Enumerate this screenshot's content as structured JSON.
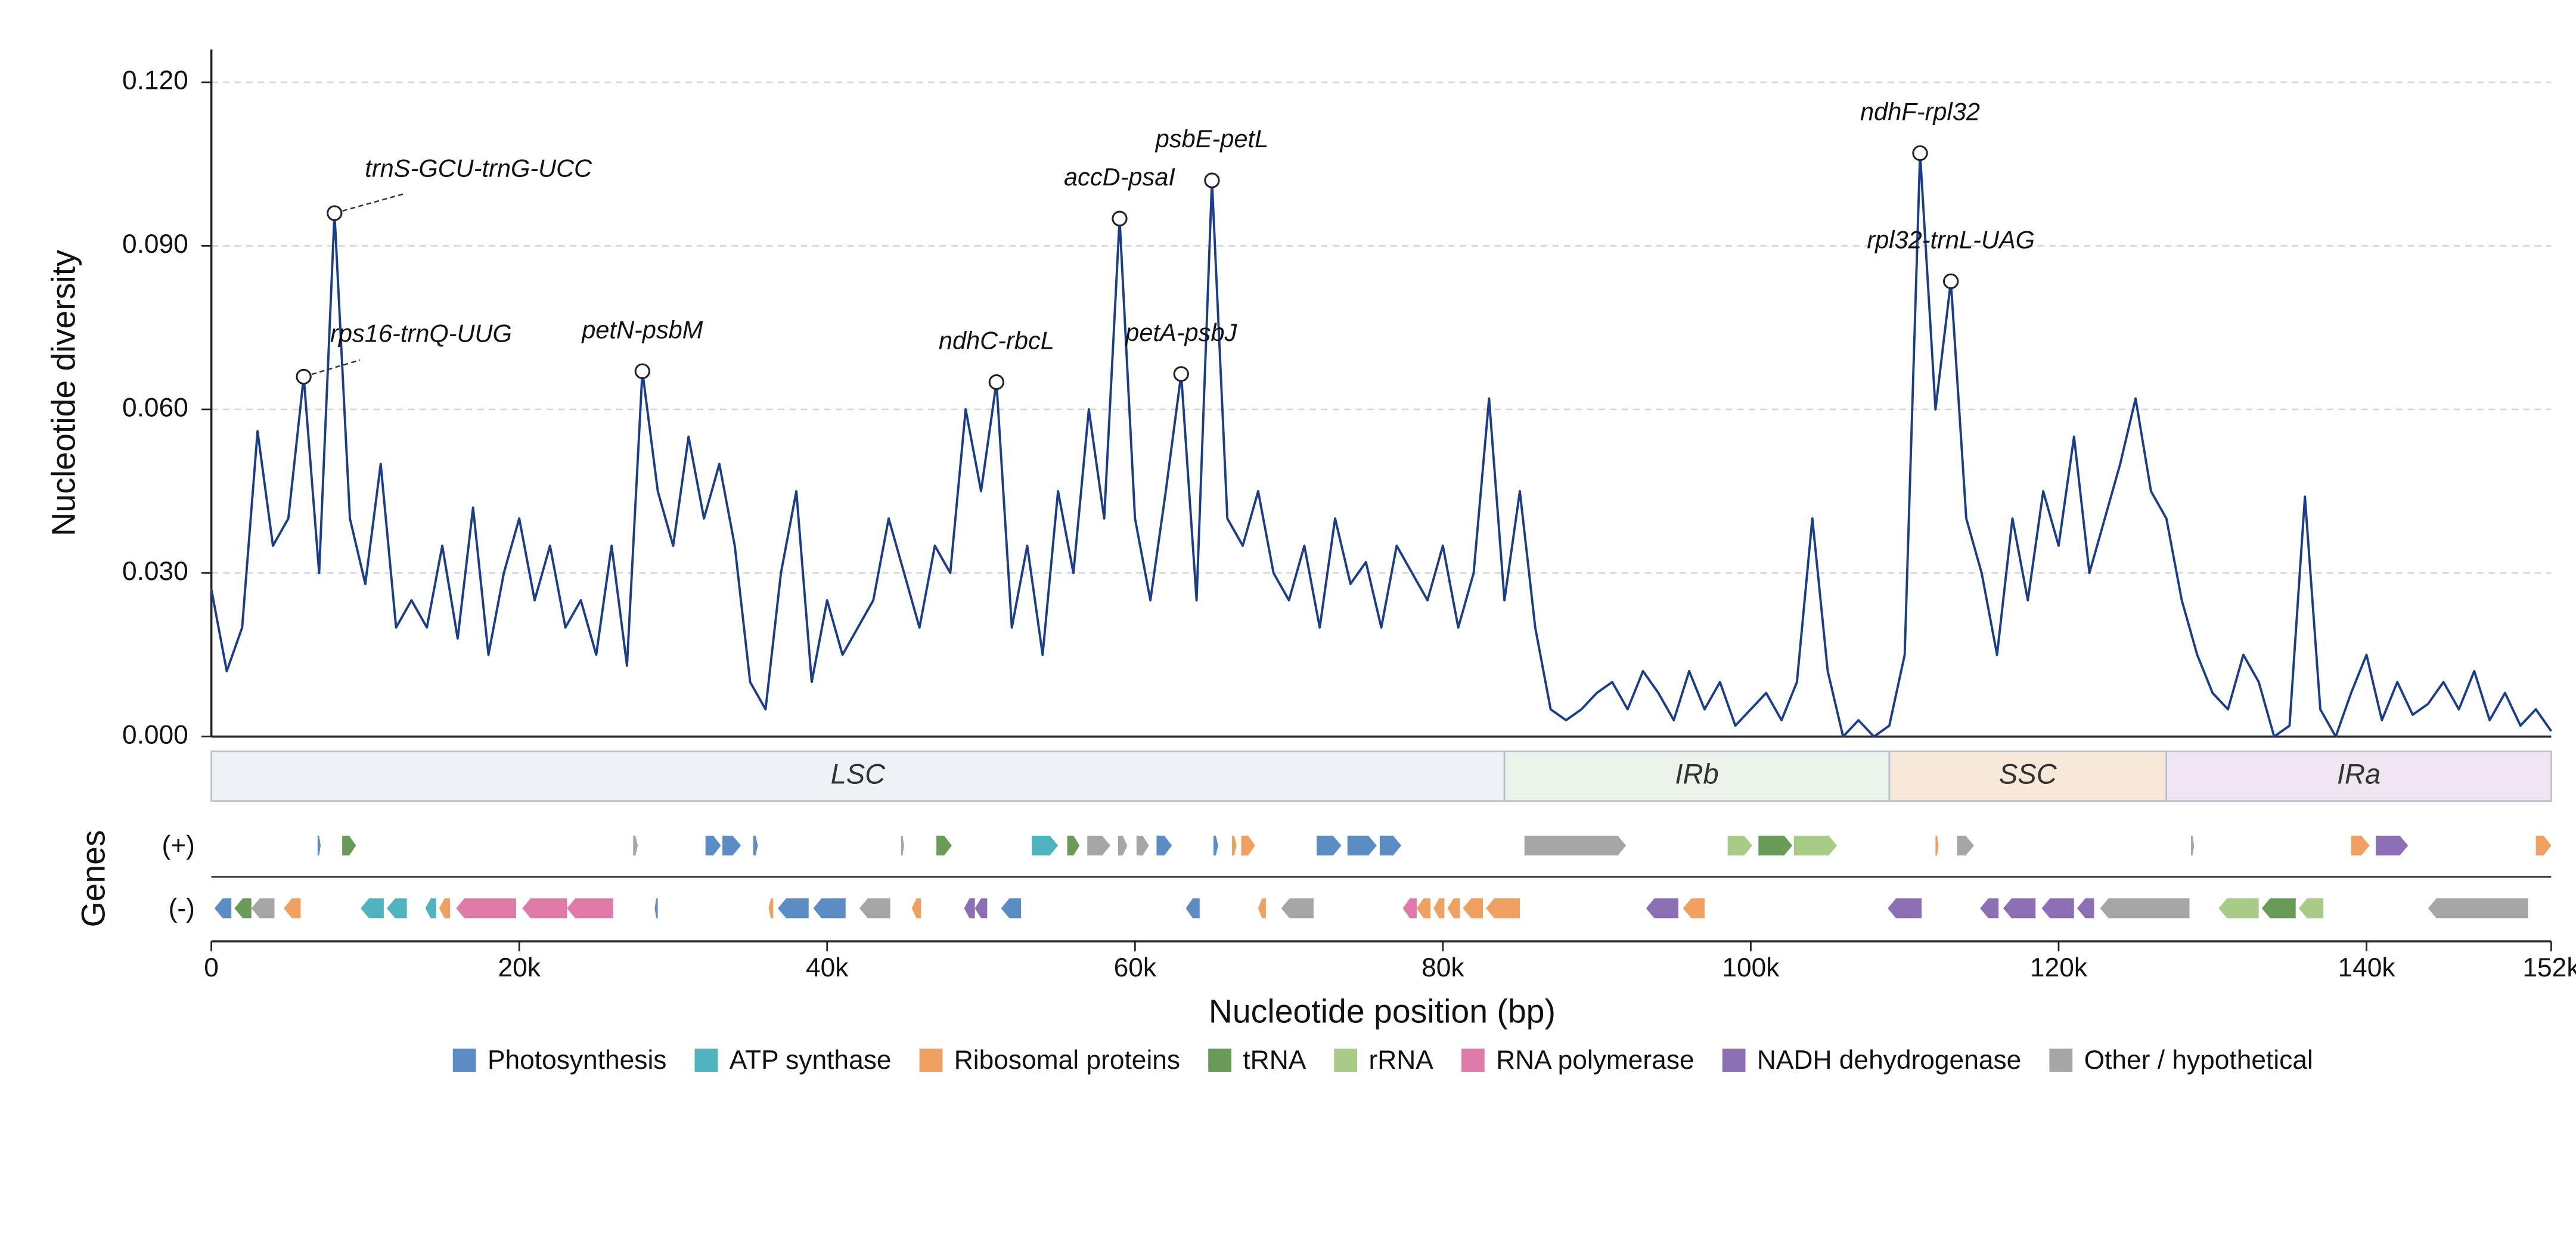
{
  "chart_data": {
    "type": "line",
    "x_label": "Nucleotide position (bp)",
    "y_label": "Nucleotide diversity",
    "x": [
      0,
      1000,
      2000,
      3000,
      4000,
      5000,
      6000,
      7000,
      8000,
      9000,
      10000,
      11000,
      12000,
      13000,
      14000,
      15000,
      16000,
      17000,
      18000,
      19000,
      20000,
      21000,
      22000,
      23000,
      24000,
      25000,
      26000,
      27000,
      28000,
      29000,
      30000,
      31000,
      32000,
      33000,
      34000,
      35000,
      36000,
      37000,
      38000,
      39000,
      40000,
      41000,
      42000,
      43000,
      44000,
      45000,
      46000,
      47000,
      48000,
      49000,
      50000,
      51000,
      52000,
      53000,
      54000,
      55000,
      56000,
      57000,
      58000,
      59000,
      60000,
      61000,
      62000,
      63000,
      64000,
      65000,
      66000,
      67000,
      68000,
      69000,
      70000,
      71000,
      72000,
      73000,
      74000,
      75000,
      76000,
      77000,
      78000,
      79000,
      80000,
      81000,
      82000,
      83000,
      84000,
      85000,
      86000,
      87000,
      88000,
      89000,
      90000,
      91000,
      92000,
      93000,
      94000,
      95000,
      96000,
      97000,
      98000,
      99000,
      100000,
      101000,
      102000,
      103000,
      104000,
      105000,
      106000,
      107000,
      108000,
      109000,
      110000,
      111000,
      112000,
      113000,
      114000,
      115000,
      116000,
      117000,
      118000,
      119000,
      120000,
      121000,
      122000,
      123000,
      124000,
      125000,
      126000,
      127000,
      128000,
      129000,
      130000,
      131000,
      132000,
      133000,
      134000,
      135000,
      136000,
      137000,
      138000,
      139000,
      140000,
      141000,
      142000,
      143000,
      144000,
      145000,
      146000,
      147000,
      148000,
      149000,
      150000,
      151000,
      152000
    ],
    "series": [
      {
        "color": "#1a3e8c",
        "values": [
          0.027,
          0.012,
          0.02,
          0.056,
          0.035,
          0.04,
          0.066,
          0.03,
          0.096,
          0.04,
          0.028,
          0.05,
          0.02,
          0.025,
          0.02,
          0.035,
          0.018,
          0.042,
          0.015,
          0.03,
          0.04,
          0.025,
          0.035,
          0.02,
          0.025,
          0.015,
          0.035,
          0.013,
          0.067,
          0.045,
          0.035,
          0.055,
          0.04,
          0.05,
          0.035,
          0.01,
          0.005,
          0.03,
          0.045,
          0.01,
          0.025,
          0.015,
          0.02,
          0.025,
          0.04,
          0.03,
          0.02,
          0.035,
          0.03,
          0.06,
          0.045,
          0.065,
          0.02,
          0.035,
          0.015,
          0.045,
          0.03,
          0.06,
          0.04,
          0.095,
          0.04,
          0.025,
          0.045,
          0.0665,
          0.025,
          0.102,
          0.04,
          0.035,
          0.045,
          0.03,
          0.025,
          0.035,
          0.02,
          0.04,
          0.028,
          0.032,
          0.02,
          0.035,
          0.03,
          0.025,
          0.035,
          0.02,
          0.03,
          0.062,
          0.025,
          0.045,
          0.02,
          0.005,
          0.003,
          0.005,
          0.008,
          0.01,
          0.005,
          0.012,
          0.008,
          0.003,
          0.012,
          0.005,
          0.01,
          0.002,
          0.005,
          0.008,
          0.003,
          0.01,
          0.04,
          0.012,
          0.0,
          0.003,
          0.0,
          0.002,
          0.015,
          0.107,
          0.06,
          0.0835,
          0.04,
          0.03,
          0.015,
          0.04,
          0.025,
          0.045,
          0.035,
          0.055,
          0.03,
          0.04,
          0.05,
          0.062,
          0.045,
          0.04,
          0.025,
          0.015,
          0.008,
          0.005,
          0.015,
          0.01,
          0.0,
          0.002,
          0.044,
          0.005,
          0.0,
          0.008,
          0.015,
          0.003,
          0.01,
          0.004,
          0.006,
          0.01,
          0.005,
          0.012,
          0.003,
          0.008,
          0.002,
          0.005,
          0.001
        ]
      }
    ],
    "xlim": [
      0,
      152000
    ],
    "xticks": [
      {
        "value": 0,
        "label": "0"
      },
      {
        "value": 20000,
        "label": "20k"
      },
      {
        "value": 40000,
        "label": "40k"
      },
      {
        "value": 60000,
        "label": "60k"
      },
      {
        "value": 80000,
        "label": "80k"
      },
      {
        "value": 100000,
        "label": "100k"
      },
      {
        "value": 120000,
        "label": "120k"
      },
      {
        "value": 140000,
        "label": "140k"
      },
      {
        "value": 152000,
        "label": "152k"
      }
    ],
    "ylim": [
      0,
      0.126
    ],
    "yticks": [
      {
        "value": 0,
        "label": "0.000"
      },
      {
        "value": 0.03,
        "label": "0.030"
      },
      {
        "value": 0.06,
        "label": "0.060"
      },
      {
        "value": 0.09,
        "label": "0.090"
      },
      {
        "value": 0.12,
        "label": "0.120"
      }
    ],
    "grid": true,
    "annotations": [
      {
        "text": "rps16-trnQ-UUG",
        "x": 6000
      },
      {
        "text": "trnS-GCU-trnG-UCC",
        "x": 8000
      },
      {
        "text": "petN-psbM",
        "x": 28000
      },
      {
        "text": "ndhC-rbcL",
        "x": 51000
      },
      {
        "text": "accD-psaI",
        "x": 59000
      },
      {
        "text": "petA-psbJ",
        "x": 63000
      },
      {
        "text": "psbE-petL",
        "x": 65000
      },
      {
        "text": "ndhF-rpl32",
        "x": 111000
      },
      {
        "text": "rpl32-trnL-UAG",
        "x": 113000
      }
    ],
    "regions": [
      {
        "name": "LSC",
        "start": 0,
        "end": 84000,
        "color": "#eef2f6"
      },
      {
        "name": "IRb",
        "start": 84000,
        "end": 109000,
        "color": "#ecf3ea"
      },
      {
        "name": "SSC",
        "start": 109000,
        "end": 127000,
        "color": "#f8e8da"
      },
      {
        "name": "IRa",
        "start": 127000,
        "end": 152000,
        "color": "#f0e6f1"
      }
    ],
    "gene_track": {
      "title": "Genes",
      "strand_labels": [
        "(+)",
        "(-)"
      ],
      "genes": [
        {
          "start": 6900,
          "end": 7100,
          "strand": "+",
          "category": "Photosynthesis"
        },
        {
          "start": 8500,
          "end": 9400,
          "strand": "+",
          "category": "tRNA"
        },
        {
          "start": 27400,
          "end": 27700,
          "strand": "+",
          "category": "Other / hypothetical"
        },
        {
          "start": 32100,
          "end": 33100,
          "strand": "+",
          "category": "Photosynthesis"
        },
        {
          "start": 33200,
          "end": 34400,
          "strand": "+",
          "category": "Photosynthesis"
        },
        {
          "start": 35200,
          "end": 35500,
          "strand": "+",
          "category": "Photosynthesis"
        },
        {
          "start": 44800,
          "end": 45000,
          "strand": "+",
          "category": "Other / hypothetical"
        },
        {
          "start": 47100,
          "end": 48100,
          "strand": "+",
          "category": "tRNA"
        },
        {
          "start": 53300,
          "end": 55000,
          "strand": "+",
          "category": "ATP synthase"
        },
        {
          "start": 55600,
          "end": 56400,
          "strand": "+",
          "category": "tRNA"
        },
        {
          "start": 56900,
          "end": 58400,
          "strand": "+",
          "category": "Other / hypothetical"
        },
        {
          "start": 58900,
          "end": 59500,
          "strand": "+",
          "category": "Other / hypothetical"
        },
        {
          "start": 60100,
          "end": 60900,
          "strand": "+",
          "category": "Other / hypothetical"
        },
        {
          "start": 61400,
          "end": 62400,
          "strand": "+",
          "category": "Photosynthesis"
        },
        {
          "start": 65100,
          "end": 65400,
          "strand": "+",
          "category": "Photosynthesis"
        },
        {
          "start": 66300,
          "end": 66600,
          "strand": "+",
          "category": "Ribosomal proteins"
        },
        {
          "start": 66900,
          "end": 67800,
          "strand": "+",
          "category": "Ribosomal proteins"
        },
        {
          "start": 71800,
          "end": 73400,
          "strand": "+",
          "category": "Photosynthesis"
        },
        {
          "start": 73800,
          "end": 75700,
          "strand": "+",
          "category": "Photosynthesis"
        },
        {
          "start": 75900,
          "end": 77300,
          "strand": "+",
          "category": "Photosynthesis"
        },
        {
          "start": 85300,
          "end": 91900,
          "strand": "+",
          "category": "Other / hypothetical"
        },
        {
          "start": 98500,
          "end": 100100,
          "strand": "+",
          "category": "rRNA"
        },
        {
          "start": 100500,
          "end": 102700,
          "strand": "+",
          "category": "tRNA"
        },
        {
          "start": 102800,
          "end": 105600,
          "strand": "+",
          "category": "rRNA"
        },
        {
          "start": 112000,
          "end": 112200,
          "strand": "+",
          "category": "Ribosomal proteins"
        },
        {
          "start": 113400,
          "end": 114500,
          "strand": "+",
          "category": "Other / hypothetical"
        },
        {
          "start": 128600,
          "end": 128800,
          "strand": "+",
          "category": "Other / hypothetical"
        },
        {
          "start": 139000,
          "end": 140200,
          "strand": "+",
          "category": "Ribosomal proteins"
        },
        {
          "start": 140600,
          "end": 142700,
          "strand": "+",
          "category": "NADH dehydrogenase"
        },
        {
          "start": 151000,
          "end": 152000,
          "strand": "+",
          "category": "Ribosomal proteins"
        },
        {
          "start": 200,
          "end": 1300,
          "strand": "-",
          "category": "Photosynthesis"
        },
        {
          "start": 1500,
          "end": 2600,
          "strand": "-",
          "category": "tRNA"
        },
        {
          "start": 2600,
          "end": 4100,
          "strand": "-",
          "category": "Other / hypothetical"
        },
        {
          "start": 4700,
          "end": 5800,
          "strand": "-",
          "category": "Ribosomal proteins"
        },
        {
          "start": 9700,
          "end": 11200,
          "strand": "-",
          "category": "ATP synthase"
        },
        {
          "start": 11400,
          "end": 12700,
          "strand": "-",
          "category": "ATP synthase"
        },
        {
          "start": 13900,
          "end": 14600,
          "strand": "-",
          "category": "ATP synthase"
        },
        {
          "start": 14800,
          "end": 15500,
          "strand": "-",
          "category": "Ribosomal proteins"
        },
        {
          "start": 15900,
          "end": 19800,
          "strand": "-",
          "category": "RNA polymerase"
        },
        {
          "start": 20200,
          "end": 23100,
          "strand": "-",
          "category": "RNA polymerase"
        },
        {
          "start": 23100,
          "end": 26100,
          "strand": "-",
          "category": "RNA polymerase"
        },
        {
          "start": 28800,
          "end": 29000,
          "strand": "-",
          "category": "Photosynthesis"
        },
        {
          "start": 36200,
          "end": 36500,
          "strand": "-",
          "category": "Ribosomal proteins"
        },
        {
          "start": 36800,
          "end": 38800,
          "strand": "-",
          "category": "Photosynthesis"
        },
        {
          "start": 39100,
          "end": 41200,
          "strand": "-",
          "category": "Photosynthesis"
        },
        {
          "start": 42100,
          "end": 44100,
          "strand": "-",
          "category": "Other / hypothetical"
        },
        {
          "start": 45500,
          "end": 46100,
          "strand": "-",
          "category": "Ribosomal proteins"
        },
        {
          "start": 48900,
          "end": 49600,
          "strand": "-",
          "category": "NADH dehydrogenase"
        },
        {
          "start": 49600,
          "end": 50400,
          "strand": "-",
          "category": "NADH dehydrogenase"
        },
        {
          "start": 51300,
          "end": 52600,
          "strand": "-",
          "category": "Photosynthesis"
        },
        {
          "start": 63300,
          "end": 64200,
          "strand": "-",
          "category": "Photosynthesis"
        },
        {
          "start": 68000,
          "end": 68500,
          "strand": "-",
          "category": "Ribosomal proteins"
        },
        {
          "start": 69500,
          "end": 71600,
          "strand": "-",
          "category": "Other / hypothetical"
        },
        {
          "start": 77400,
          "end": 78300,
          "strand": "-",
          "category": "RNA polymerase"
        },
        {
          "start": 78300,
          "end": 79200,
          "strand": "-",
          "category": "Ribosomal proteins"
        },
        {
          "start": 79400,
          "end": 80100,
          "strand": "-",
          "category": "Ribosomal proteins"
        },
        {
          "start": 80300,
          "end": 81100,
          "strand": "-",
          "category": "Ribosomal proteins"
        },
        {
          "start": 81300,
          "end": 82600,
          "strand": "-",
          "category": "Ribosomal proteins"
        },
        {
          "start": 82800,
          "end": 85000,
          "strand": "-",
          "category": "Ribosomal proteins"
        },
        {
          "start": 93200,
          "end": 95300,
          "strand": "-",
          "category": "NADH dehydrogenase"
        },
        {
          "start": 95600,
          "end": 97000,
          "strand": "-",
          "category": "Ribosomal proteins"
        },
        {
          "start": 108900,
          "end": 111100,
          "strand": "-",
          "category": "NADH dehydrogenase"
        },
        {
          "start": 114900,
          "end": 116100,
          "strand": "-",
          "category": "NADH dehydrogenase"
        },
        {
          "start": 116400,
          "end": 118500,
          "strand": "-",
          "category": "NADH dehydrogenase"
        },
        {
          "start": 118900,
          "end": 121000,
          "strand": "-",
          "category": "NADH dehydrogenase"
        },
        {
          "start": 121200,
          "end": 122300,
          "strand": "-",
          "category": "NADH dehydrogenase"
        },
        {
          "start": 122700,
          "end": 128500,
          "strand": "-",
          "category": "Other / hypothetical"
        },
        {
          "start": 130400,
          "end": 133000,
          "strand": "-",
          "category": "rRNA"
        },
        {
          "start": 133200,
          "end": 135400,
          "strand": "-",
          "category": "tRNA"
        },
        {
          "start": 135600,
          "end": 137200,
          "strand": "-",
          "category": "rRNA"
        },
        {
          "start": 144000,
          "end": 150500,
          "strand": "-",
          "category": "Other / hypothetical"
        }
      ]
    },
    "legend": [
      {
        "name": "Photosynthesis",
        "color": "#5b8cc4"
      },
      {
        "name": "ATP synthase",
        "color": "#4fb3c0"
      },
      {
        "name": "Ribosomal proteins",
        "color": "#f0a060"
      },
      {
        "name": "tRNA",
        "color": "#6a9a58"
      },
      {
        "name": "rRNA",
        "color": "#a8cc88"
      },
      {
        "name": "RNA polymerase",
        "color": "#e07aa8"
      },
      {
        "name": "NADH dehydrogenase",
        "color": "#8c6fb4"
      },
      {
        "name": "Other / hypothetical",
        "color": "#a6a6a6"
      }
    ]
  }
}
